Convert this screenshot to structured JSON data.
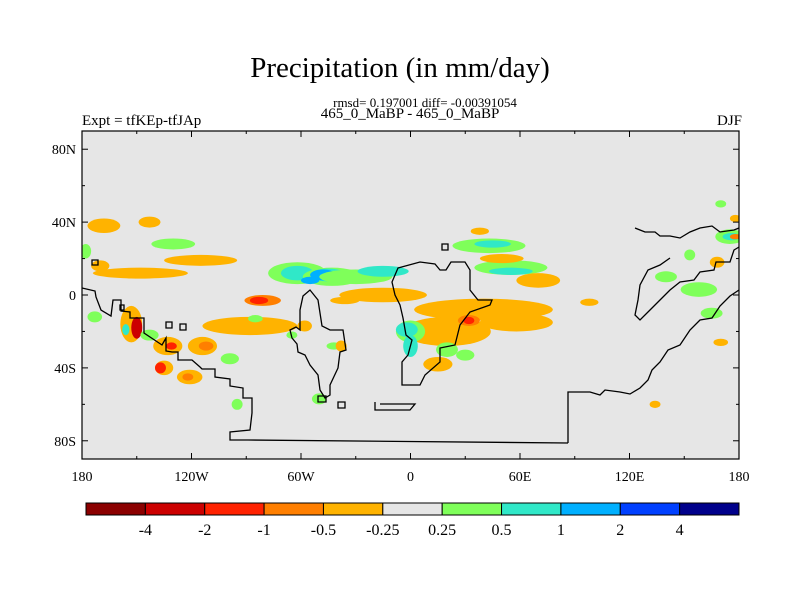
{
  "header": {
    "title": "Precipitation (in mm/day)",
    "stats": "rmsd= 0.197001 diff= -0.00391054",
    "case": "465_0_MaBP - 465_0_MaBP",
    "left_label": "Expt = tfKEp-tfJAp",
    "right_label": "DJF"
  },
  "chart_data": {
    "type": "heatmap",
    "title": "Precipitation (in mm/day)",
    "xlim": [
      -180,
      180
    ],
    "ylim": [
      -90,
      90
    ],
    "x_ticks": [
      {
        "v": -180,
        "label": "180"
      },
      {
        "v": -120,
        "label": "120W"
      },
      {
        "v": -60,
        "label": "60W"
      },
      {
        "v": 0,
        "label": "0"
      },
      {
        "v": 60,
        "label": "60E"
      },
      {
        "v": 120,
        "label": "120E"
      },
      {
        "v": 180,
        "label": "180"
      }
    ],
    "y_ticks": [
      {
        "v": 80,
        "label": "80N"
      },
      {
        "v": 40,
        "label": "40N"
      },
      {
        "v": 0,
        "label": "0"
      },
      {
        "v": -40,
        "label": "40S"
      },
      {
        "v": -80,
        "label": "80S"
      }
    ],
    "colorbar": {
      "colors": [
        "#8b0000",
        "#cc0000",
        "#ff2200",
        "#ff7f00",
        "#ffb300",
        "#e6e6e6",
        "#7fff5a",
        "#30e8c8",
        "#00b0ff",
        "#0040ff",
        "#00008b"
      ],
      "labels": [
        "-4",
        "-2",
        "-1",
        "-0.5",
        "-0.25",
        "0.25",
        "0.5",
        "1",
        "2",
        "4"
      ]
    },
    "anomalies": [
      {
        "lon": -168,
        "lat": 38,
        "rx": 9,
        "ry": 4,
        "level": 4
      },
      {
        "lon": -143,
        "lat": 40,
        "rx": 6,
        "ry": 3,
        "level": 4
      },
      {
        "lon": -130,
        "lat": 28,
        "rx": 12,
        "ry": 3,
        "level": 6
      },
      {
        "lon": -115,
        "lat": 19,
        "rx": 20,
        "ry": 3,
        "level": 4
      },
      {
        "lon": -148,
        "lat": 12,
        "rx": 26,
        "ry": 3,
        "level": 4
      },
      {
        "lon": -178,
        "lat": 24,
        "rx": 3,
        "ry": 4,
        "level": 6
      },
      {
        "lon": -170,
        "lat": 16,
        "rx": 5,
        "ry": 3,
        "level": 4
      },
      {
        "lon": -173,
        "lat": -12,
        "rx": 4,
        "ry": 3,
        "level": 6
      },
      {
        "lon": -153,
        "lat": -16,
        "rx": 6,
        "ry": 10,
        "level": 4
      },
      {
        "lon": -150,
        "lat": -18,
        "rx": 3,
        "ry": 6,
        "level": 1
      },
      {
        "lon": -156,
        "lat": -19,
        "rx": 2,
        "ry": 3,
        "level": 7
      },
      {
        "lon": -143,
        "lat": -22,
        "rx": 5,
        "ry": 3,
        "level": 6
      },
      {
        "lon": -133,
        "lat": -28,
        "rx": 8,
        "ry": 5,
        "level": 4
      },
      {
        "lon": -131,
        "lat": -28,
        "rx": 3,
        "ry": 2,
        "level": 2
      },
      {
        "lon": -114,
        "lat": -28,
        "rx": 8,
        "ry": 5,
        "level": 4
      },
      {
        "lon": -112,
        "lat": -28,
        "rx": 4,
        "ry": 2.5,
        "level": 3
      },
      {
        "lon": -135,
        "lat": -40,
        "rx": 5,
        "ry": 4,
        "level": 4
      },
      {
        "lon": -137,
        "lat": -40,
        "rx": 3,
        "ry": 3,
        "level": 2
      },
      {
        "lon": -121,
        "lat": -45,
        "rx": 7,
        "ry": 4,
        "level": 4
      },
      {
        "lon": -122,
        "lat": -45,
        "rx": 3,
        "ry": 2,
        "level": 3
      },
      {
        "lon": -88,
        "lat": -17,
        "rx": 26,
        "ry": 5,
        "level": 4
      },
      {
        "lon": -81,
        "lat": -3,
        "rx": 10,
        "ry": 3,
        "level": 3
      },
      {
        "lon": -83,
        "lat": -3,
        "rx": 5,
        "ry": 2,
        "level": 2
      },
      {
        "lon": -85,
        "lat": -13,
        "rx": 4,
        "ry": 2,
        "level": 6
      },
      {
        "lon": -99,
        "lat": -35,
        "rx": 5,
        "ry": 3,
        "level": 6
      },
      {
        "lon": -95,
        "lat": -60,
        "rx": 3,
        "ry": 3,
        "level": 6
      },
      {
        "lon": -50,
        "lat": -57,
        "rx": 4,
        "ry": 3,
        "level": 6
      },
      {
        "lon": -58,
        "lat": -17,
        "rx": 4,
        "ry": 3,
        "level": 4
      },
      {
        "lon": -65,
        "lat": -22,
        "rx": 3,
        "ry": 2,
        "level": 6
      },
      {
        "lon": -42,
        "lat": -28,
        "rx": 4,
        "ry": 2,
        "level": 6
      },
      {
        "lon": -38,
        "lat": -28,
        "rx": 3,
        "ry": 3,
        "level": 4
      },
      {
        "lon": -62,
        "lat": 12,
        "rx": 16,
        "ry": 6,
        "level": 6
      },
      {
        "lon": -62,
        "lat": 12,
        "rx": 9,
        "ry": 4,
        "level": 7
      },
      {
        "lon": -43,
        "lat": 10,
        "rx": 16,
        "ry": 5,
        "level": 6
      },
      {
        "lon": -45,
        "lat": 11,
        "rx": 10,
        "ry": 3.5,
        "level": 7
      },
      {
        "lon": -55,
        "lat": 8,
        "rx": 5,
        "ry": 2,
        "level": 8
      },
      {
        "lon": -48,
        "lat": 11,
        "rx": 7,
        "ry": 3,
        "level": 8
      },
      {
        "lon": -30,
        "lat": 10,
        "rx": 20,
        "ry": 4,
        "level": 6
      },
      {
        "lon": -15,
        "lat": 13,
        "rx": 14,
        "ry": 3,
        "level": 7
      },
      {
        "lon": -15,
        "lat": 0,
        "rx": 24,
        "ry": 4,
        "level": 4
      },
      {
        "lon": -36,
        "lat": -3,
        "rx": 8,
        "ry": 2,
        "level": 4
      },
      {
        "lon": 43,
        "lat": 27,
        "rx": 20,
        "ry": 4,
        "level": 6
      },
      {
        "lon": 45,
        "lat": 28,
        "rx": 10,
        "ry": 2,
        "level": 7
      },
      {
        "lon": 38,
        "lat": 35,
        "rx": 5,
        "ry": 2,
        "level": 4
      },
      {
        "lon": 55,
        "lat": 15,
        "rx": 20,
        "ry": 4,
        "level": 6
      },
      {
        "lon": 55,
        "lat": 13,
        "rx": 12,
        "ry": 2,
        "level": 7
      },
      {
        "lon": 50,
        "lat": 20,
        "rx": 12,
        "ry": 2.5,
        "level": 4
      },
      {
        "lon": 70,
        "lat": 8,
        "rx": 12,
        "ry": 4,
        "level": 4
      },
      {
        "lon": 40,
        "lat": -8,
        "rx": 38,
        "ry": 6,
        "level": 4
      },
      {
        "lon": 58,
        "lat": -15,
        "rx": 20,
        "ry": 5,
        "level": 4
      },
      {
        "lon": 20,
        "lat": -20,
        "rx": 24,
        "ry": 8,
        "level": 4
      },
      {
        "lon": 32,
        "lat": -14,
        "rx": 6,
        "ry": 3,
        "level": 3
      },
      {
        "lon": 32,
        "lat": -14,
        "rx": 3,
        "ry": 2,
        "level": 2
      },
      {
        "lon": 0,
        "lat": -20,
        "rx": 8,
        "ry": 6,
        "level": 6
      },
      {
        "lon": -2,
        "lat": -19,
        "rx": 6,
        "ry": 4,
        "level": 7
      },
      {
        "lon": 0,
        "lat": -28,
        "rx": 4,
        "ry": 6,
        "level": 7
      },
      {
        "lon": 20,
        "lat": -30,
        "rx": 6,
        "ry": 4,
        "level": 6
      },
      {
        "lon": 30,
        "lat": -33,
        "rx": 5,
        "ry": 3,
        "level": 6
      },
      {
        "lon": 15,
        "lat": -38,
        "rx": 8,
        "ry": 4,
        "level": 4
      },
      {
        "lon": 98,
        "lat": -4,
        "rx": 5,
        "ry": 2,
        "level": 4
      },
      {
        "lon": 134,
        "lat": -60,
        "rx": 3,
        "ry": 2,
        "level": 4
      },
      {
        "lon": 158,
        "lat": 3,
        "rx": 10,
        "ry": 4,
        "level": 6
      },
      {
        "lon": 140,
        "lat": 10,
        "rx": 6,
        "ry": 3,
        "level": 6
      },
      {
        "lon": 153,
        "lat": 22,
        "rx": 3,
        "ry": 3,
        "level": 6
      },
      {
        "lon": 165,
        "lat": -10,
        "rx": 6,
        "ry": 3,
        "level": 6
      },
      {
        "lon": 170,
        "lat": -26,
        "rx": 4,
        "ry": 2,
        "level": 4
      },
      {
        "lon": 168,
        "lat": 18,
        "rx": 4,
        "ry": 3,
        "level": 4
      },
      {
        "lon": 175,
        "lat": 32,
        "rx": 8,
        "ry": 4,
        "level": 6
      },
      {
        "lon": 176,
        "lat": 32,
        "rx": 5,
        "ry": 2,
        "level": 7
      },
      {
        "lon": 178,
        "lat": 32,
        "rx": 3,
        "ry": 1.5,
        "level": 3
      },
      {
        "lon": 170,
        "lat": 50,
        "rx": 3,
        "ry": 2,
        "level": 6
      },
      {
        "lon": 178,
        "lat": 42,
        "rx": 3,
        "ry": 2,
        "level": 4
      }
    ]
  }
}
